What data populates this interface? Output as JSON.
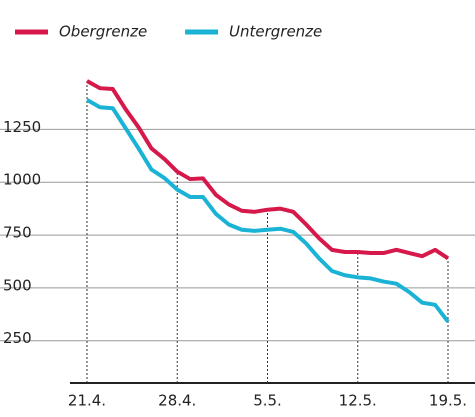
{
  "chart_data": {
    "type": "line",
    "categories": [
      "21.4.",
      null,
      null,
      null,
      null,
      null,
      null,
      "28.4.",
      null,
      null,
      null,
      null,
      null,
      null,
      "5.5.",
      null,
      null,
      null,
      null,
      null,
      null,
      "12.5.",
      null,
      null,
      null,
      null,
      null,
      null,
      "19.5."
    ],
    "series": [
      {
        "name": "Obergrenze",
        "color": "#d6184b",
        "values": [
          1479,
          1445,
          1441,
          1345,
          1260,
          1160,
          1110,
          1050,
          1015,
          1018,
          940,
          895,
          865,
          860,
          870,
          875,
          860,
          800,
          735,
          680,
          670,
          670,
          665,
          665,
          680,
          665,
          650,
          680,
          640
        ]
      },
      {
        "name": "Untergrenze",
        "color": "#1ab3d6",
        "values": [
          1390,
          1355,
          1350,
          1255,
          1160,
          1060,
          1020,
          965,
          930,
          930,
          850,
          800,
          775,
          770,
          775,
          780,
          765,
          710,
          640,
          580,
          560,
          550,
          545,
          530,
          520,
          480,
          430,
          420,
          340
        ]
      }
    ],
    "ylim": [
      50,
      1550
    ],
    "yticks": [
      250,
      500,
      750,
      1000,
      1250
    ],
    "grid": true
  }
}
